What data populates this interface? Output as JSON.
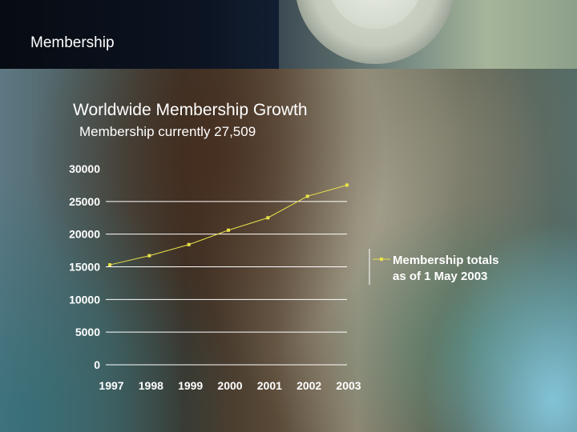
{
  "header": {
    "title": "Membership"
  },
  "slide": {
    "title": "Worldwide Membership Growth",
    "subtitle": "Membership currently 27,509"
  },
  "colors": {
    "series_line": "#e8e24a",
    "gridline": "#ffffff",
    "text": "#ffffff"
  },
  "chart_data": {
    "type": "line",
    "title": "",
    "xlabel": "",
    "ylabel": "",
    "categories": [
      "1997",
      "1998",
      "1999",
      "2000",
      "2001",
      "2002",
      "2003"
    ],
    "series": [
      {
        "name": "Membership totals as of 1 May 2003",
        "legend_lines": [
          "Membership totals",
          "as of 1 May 2003"
        ],
        "values": [
          15300,
          16700,
          18400,
          20600,
          22500,
          25800,
          27509
        ]
      }
    ],
    "y_ticks": [
      "30000",
      "25000",
      "20000",
      "15000",
      "10000",
      "5000",
      "0"
    ],
    "ylim": [
      0,
      30000
    ],
    "grid": true,
    "legend": "right"
  }
}
